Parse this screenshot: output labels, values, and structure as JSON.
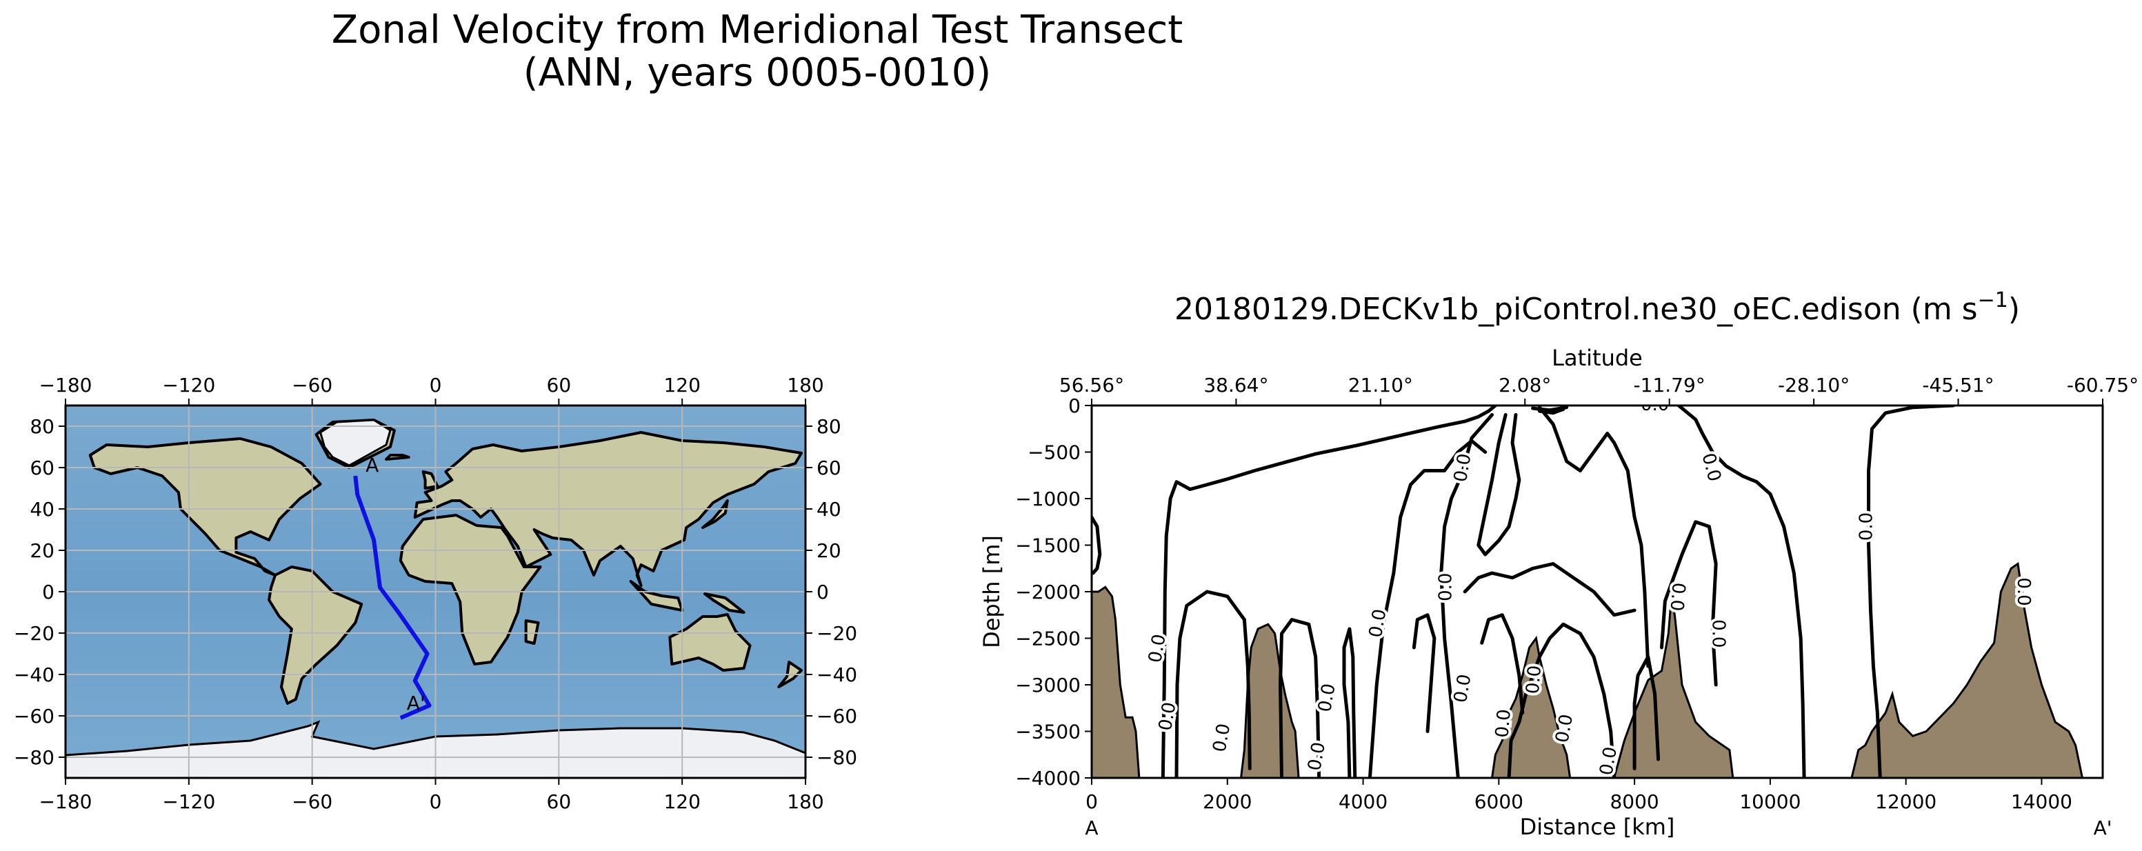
{
  "figure": {
    "title_line1": "Zonal Velocity from Meridional Test Transect",
    "title_line2": "(ANN, years 0005-0010)"
  },
  "chart_data": [
    {
      "type": "map",
      "projection": "plate-carree",
      "xlim": [
        -180,
        180
      ],
      "ylim": [
        -90,
        90
      ],
      "xticks": [
        -180,
        -120,
        -60,
        0,
        60,
        120,
        180
      ],
      "yticks": [
        -80,
        -60,
        -40,
        -20,
        0,
        20,
        40,
        60,
        80
      ],
      "grid": true,
      "transect_color": "#1010e0",
      "transect": [
        [
          -39,
          56
        ],
        [
          -38,
          47
        ],
        [
          -30,
          25
        ],
        [
          -27,
          2
        ],
        [
          -18,
          -10
        ],
        [
          -4,
          -30
        ],
        [
          -10,
          -43
        ],
        [
          -3,
          -55
        ],
        [
          -17,
          -61
        ]
      ],
      "labels": [
        {
          "text": "A",
          "lon": -34,
          "lat": 58
        },
        {
          "text": "A'",
          "lon": -14,
          "lat": -57
        }
      ]
    },
    {
      "type": "contour",
      "title": "20180129.DECKv1b_piControl.ne30_oEC.edison (m s",
      "title_sup": "−1",
      "title_end": ")",
      "xlabel": "Distance [km]",
      "ylabel": "Depth [m]",
      "top_xlabel": "Latitude",
      "xlim": [
        0,
        14900
      ],
      "ylim": [
        -4000,
        0
      ],
      "xticks": [
        0,
        2000,
        4000,
        6000,
        8000,
        10000,
        12000,
        14000
      ],
      "yticks": [
        0,
        -500,
        -1000,
        -1500,
        -2000,
        -2500,
        -3000,
        -3500,
        -4000
      ],
      "top_ticks": [
        {
          "x": 0,
          "label": "56.56°"
        },
        {
          "x": 2128.5,
          "label": "38.64°"
        },
        {
          "x": 4257,
          "label": "21.10°"
        },
        {
          "x": 6385.5,
          "label": "2.08°"
        },
        {
          "x": 8514,
          "label": "-11.79°"
        },
        {
          "x": 10642.5,
          "label": "-28.10°"
        },
        {
          "x": 12771,
          "label": "-45.51°"
        },
        {
          "x": 14900,
          "label": "-60.75°"
        }
      ],
      "endpoints": {
        "left": "A",
        "right": "A'"
      },
      "contour_level_label": "0.0",
      "contour_labels": [
        {
          "x": 5550,
          "y": -680,
          "rot": -80
        },
        {
          "x": 9050,
          "y": -680,
          "rot": 75
        },
        {
          "x": 11500,
          "y": -1300,
          "rot": -90
        },
        {
          "x": 5300,
          "y": -1950,
          "rot": -90
        },
        {
          "x": 4300,
          "y": -2350,
          "rot": -80
        },
        {
          "x": 1050,
          "y": -2620,
          "rot": -80
        },
        {
          "x": 8550,
          "y": -2050,
          "rot": 95
        },
        {
          "x": 9150,
          "y": -2450,
          "rot": 90
        },
        {
          "x": 13650,
          "y": -2000,
          "rot": 90
        },
        {
          "x": 5550,
          "y": -3050,
          "rot": -80
        },
        {
          "x": 6600,
          "y": -2950,
          "rot": -85
        },
        {
          "x": 3550,
          "y": -3150,
          "rot": -80
        },
        {
          "x": 1200,
          "y": -3350,
          "rot": -80
        },
        {
          "x": 2000,
          "y": -3580,
          "rot": -80
        },
        {
          "x": 3400,
          "y": -3780,
          "rot": -80
        },
        {
          "x": 6150,
          "y": -3420,
          "rot": -85
        },
        {
          "x": 7050,
          "y": -3480,
          "rot": -80
        },
        {
          "x": 7700,
          "y": -3830,
          "rot": -80
        },
        {
          "x": 8300,
          "y": -50,
          "rot": 0
        }
      ],
      "contours": [
        [
          [
            0,
            -1200
          ],
          [
            80,
            -1300
          ],
          [
            120,
            -1600
          ],
          [
            80,
            -1750
          ],
          [
            20,
            -1800
          ]
        ],
        [
          [
            1050,
            -4000
          ],
          [
            1070,
            -3000
          ],
          [
            1080,
            -2000
          ],
          [
            1100,
            -1400
          ],
          [
            1160,
            -1000
          ],
          [
            1250,
            -820
          ],
          [
            1450,
            -900
          ],
          [
            1650,
            -860
          ],
          [
            2000,
            -790
          ],
          [
            2400,
            -700
          ],
          [
            2800,
            -620
          ],
          [
            3300,
            -520
          ],
          [
            3900,
            -430
          ],
          [
            4500,
            -330
          ],
          [
            5100,
            -230
          ],
          [
            5500,
            -170
          ],
          [
            5700,
            -120
          ],
          [
            5850,
            -60
          ],
          [
            5950,
            0
          ]
        ],
        [
          [
            8650,
            0
          ],
          [
            8900,
            -150
          ],
          [
            9000,
            -300
          ],
          [
            9150,
            -500
          ],
          [
            9350,
            -650
          ],
          [
            9600,
            -760
          ],
          [
            9800,
            -820
          ],
          [
            10000,
            -950
          ],
          [
            10200,
            -1300
          ],
          [
            10350,
            -1800
          ],
          [
            10450,
            -2500
          ],
          [
            10480,
            -3200
          ],
          [
            10500,
            -4000
          ]
        ],
        [
          [
            12700,
            0
          ],
          [
            12100,
            -20
          ],
          [
            11700,
            -80
          ],
          [
            11500,
            -250
          ],
          [
            11450,
            -700
          ],
          [
            11450,
            -1500
          ],
          [
            11480,
            -2200
          ],
          [
            11520,
            -2800
          ],
          [
            11580,
            -3300
          ],
          [
            11620,
            -4000
          ]
        ],
        [
          [
            1250,
            -4000
          ],
          [
            1260,
            -3000
          ],
          [
            1300,
            -2500
          ],
          [
            1400,
            -2150
          ],
          [
            1700,
            -2000
          ],
          [
            2000,
            -2050
          ],
          [
            2250,
            -2300
          ],
          [
            2300,
            -2800
          ],
          [
            2320,
            -3300
          ],
          [
            2330,
            -3900
          ]
        ],
        [
          [
            2800,
            -4000
          ],
          [
            2780,
            -3000
          ],
          [
            2800,
            -2450
          ],
          [
            2950,
            -2300
          ],
          [
            3200,
            -2350
          ],
          [
            3300,
            -2700
          ],
          [
            3330,
            -3300
          ],
          [
            3350,
            -4000
          ]
        ],
        [
          [
            3800,
            -4000
          ],
          [
            3780,
            -3400
          ],
          [
            3720,
            -3000
          ],
          [
            3720,
            -2600
          ],
          [
            3800,
            -2400
          ],
          [
            3850,
            -2700
          ],
          [
            3860,
            -3300
          ],
          [
            3880,
            -4000
          ]
        ],
        [
          [
            4100,
            -4000
          ],
          [
            4200,
            -3000
          ],
          [
            4300,
            -2350
          ],
          [
            4450,
            -1800
          ],
          [
            4550,
            -1200
          ],
          [
            4700,
            -850
          ],
          [
            4900,
            -700
          ],
          [
            5200,
            -700
          ],
          [
            5400,
            -500
          ],
          [
            5600,
            -380
          ],
          [
            5800,
            -500
          ]
        ],
        [
          [
            5400,
            -4000
          ],
          [
            5300,
            -3200
          ],
          [
            5200,
            -2500
          ],
          [
            5150,
            -1800
          ],
          [
            5200,
            -1300
          ],
          [
            5300,
            -1000
          ],
          [
            5450,
            -750
          ],
          [
            5600,
            -350
          ],
          [
            5900,
            -100
          ]
        ],
        [
          [
            6100,
            -100
          ],
          [
            6000,
            -400
          ],
          [
            5900,
            -800
          ],
          [
            5800,
            -1150
          ],
          [
            5700,
            -1500
          ],
          [
            5800,
            -1600
          ],
          [
            6000,
            -1450
          ],
          [
            6150,
            -1300
          ],
          [
            6250,
            -1000
          ],
          [
            6300,
            -800
          ],
          [
            6200,
            -400
          ],
          [
            6250,
            -100
          ]
        ],
        [
          [
            5500,
            -2000
          ],
          [
            5700,
            -1850
          ],
          [
            5900,
            -1800
          ],
          [
            6200,
            -1850
          ],
          [
            6500,
            -1750
          ],
          [
            6800,
            -1700
          ],
          [
            7100,
            -1850
          ],
          [
            7400,
            -2000
          ],
          [
            7700,
            -2250
          ],
          [
            8000,
            -2200
          ]
        ],
        [
          [
            6600,
            -20
          ],
          [
            6800,
            -200
          ],
          [
            6900,
            -400
          ],
          [
            7000,
            -600
          ],
          [
            7200,
            -700
          ],
          [
            7400,
            -500
          ],
          [
            7600,
            -300
          ],
          [
            7700,
            -400
          ],
          [
            7900,
            -700
          ],
          [
            8000,
            -1200
          ],
          [
            8100,
            -1500
          ],
          [
            8150,
            -2000
          ],
          [
            8200,
            -2800
          ]
        ],
        [
          [
            5750,
            -2550
          ],
          [
            5850,
            -2300
          ],
          [
            6050,
            -2250
          ],
          [
            6200,
            -2500
          ],
          [
            6300,
            -2900
          ],
          [
            6350,
            -3300
          ]
        ],
        [
          [
            6150,
            -4000
          ],
          [
            6180,
            -3600
          ],
          [
            6300,
            -3400
          ],
          [
            6400,
            -3100
          ],
          [
            6600,
            -2700
          ],
          [
            6750,
            -2500
          ],
          [
            6950,
            -2350
          ],
          [
            7200,
            -2450
          ],
          [
            7400,
            -2700
          ],
          [
            7550,
            -3100
          ],
          [
            7650,
            -3500
          ],
          [
            7700,
            -4000
          ]
        ],
        [
          [
            8400,
            -2600
          ],
          [
            8450,
            -2100
          ],
          [
            8700,
            -1600
          ],
          [
            8900,
            -1250
          ],
          [
            9100,
            -1300
          ],
          [
            9200,
            -1700
          ],
          [
            9150,
            -2400
          ],
          [
            9200,
            -3000
          ]
        ],
        [
          [
            4750,
            -2600
          ],
          [
            4800,
            -2300
          ],
          [
            4950,
            -2250
          ],
          [
            5050,
            -2500
          ],
          [
            5000,
            -3000
          ],
          [
            4950,
            -3500
          ]
        ],
        [
          [
            6500,
            -30
          ],
          [
            6750,
            -50
          ],
          [
            7000,
            -20
          ]
        ],
        [
          [
            6600,
            -60
          ],
          [
            6800,
            -80
          ],
          [
            6950,
            -40
          ]
        ],
        [
          [
            8000,
            -3900
          ],
          [
            8000,
            -3200
          ],
          [
            8050,
            -2900
          ],
          [
            8200,
            -2700
          ],
          [
            8300,
            -3100
          ],
          [
            8350,
            -3800
          ]
        ]
      ],
      "bathymetry_color": "#958469",
      "bathymetry": [
        [
          0,
          -4000
        ],
        [
          0,
          -2000
        ],
        [
          100,
          -2000
        ],
        [
          200,
          -1950
        ],
        [
          300,
          -2050
        ],
        [
          350,
          -2300
        ],
        [
          420,
          -3000
        ],
        [
          500,
          -3350
        ],
        [
          600,
          -3350
        ],
        [
          650,
          -3500
        ],
        [
          700,
          -4000
        ],
        [
          2200,
          -4000
        ],
        [
          2250,
          -3700
        ],
        [
          2300,
          -3000
        ],
        [
          2350,
          -2600
        ],
        [
          2450,
          -2400
        ],
        [
          2600,
          -2350
        ],
        [
          2700,
          -2450
        ],
        [
          2780,
          -2850
        ],
        [
          2850,
          -3100
        ],
        [
          2950,
          -3400
        ],
        [
          3000,
          -3500
        ],
        [
          3050,
          -4000
        ],
        [
          5900,
          -4000
        ],
        [
          5950,
          -3750
        ],
        [
          6050,
          -3600
        ],
        [
          6150,
          -3300
        ],
        [
          6250,
          -3150
        ],
        [
          6350,
          -2900
        ],
        [
          6450,
          -2600
        ],
        [
          6550,
          -2500
        ],
        [
          6600,
          -2700
        ],
        [
          6700,
          -3000
        ],
        [
          6800,
          -3250
        ],
        [
          6900,
          -3550
        ],
        [
          7000,
          -3750
        ],
        [
          7050,
          -4000
        ],
        [
          7700,
          -4000
        ],
        [
          7850,
          -3600
        ],
        [
          8000,
          -3300
        ],
        [
          8200,
          -2950
        ],
        [
          8400,
          -2850
        ],
        [
          8500,
          -2450
        ],
        [
          8550,
          -2000
        ],
        [
          8600,
          -2300
        ],
        [
          8700,
          -3000
        ],
        [
          8900,
          -3400
        ],
        [
          9100,
          -3550
        ],
        [
          9300,
          -3650
        ],
        [
          9400,
          -3700
        ],
        [
          9450,
          -4000
        ],
        [
          11200,
          -4000
        ],
        [
          11300,
          -3700
        ],
        [
          11400,
          -3650
        ],
        [
          11500,
          -3500
        ],
        [
          11700,
          -3300
        ],
        [
          11800,
          -3100
        ],
        [
          11900,
          -3400
        ],
        [
          12100,
          -3550
        ],
        [
          12300,
          -3500
        ],
        [
          12500,
          -3350
        ],
        [
          12700,
          -3200
        ],
        [
          12900,
          -3000
        ],
        [
          13100,
          -2750
        ],
        [
          13300,
          -2550
        ],
        [
          13400,
          -2000
        ],
        [
          13550,
          -1750
        ],
        [
          13650,
          -1700
        ],
        [
          13750,
          -2200
        ],
        [
          13850,
          -2600
        ],
        [
          14000,
          -3000
        ],
        [
          14200,
          -3400
        ],
        [
          14400,
          -3500
        ],
        [
          14500,
          -3650
        ],
        [
          14600,
          -4000
        ]
      ]
    }
  ]
}
